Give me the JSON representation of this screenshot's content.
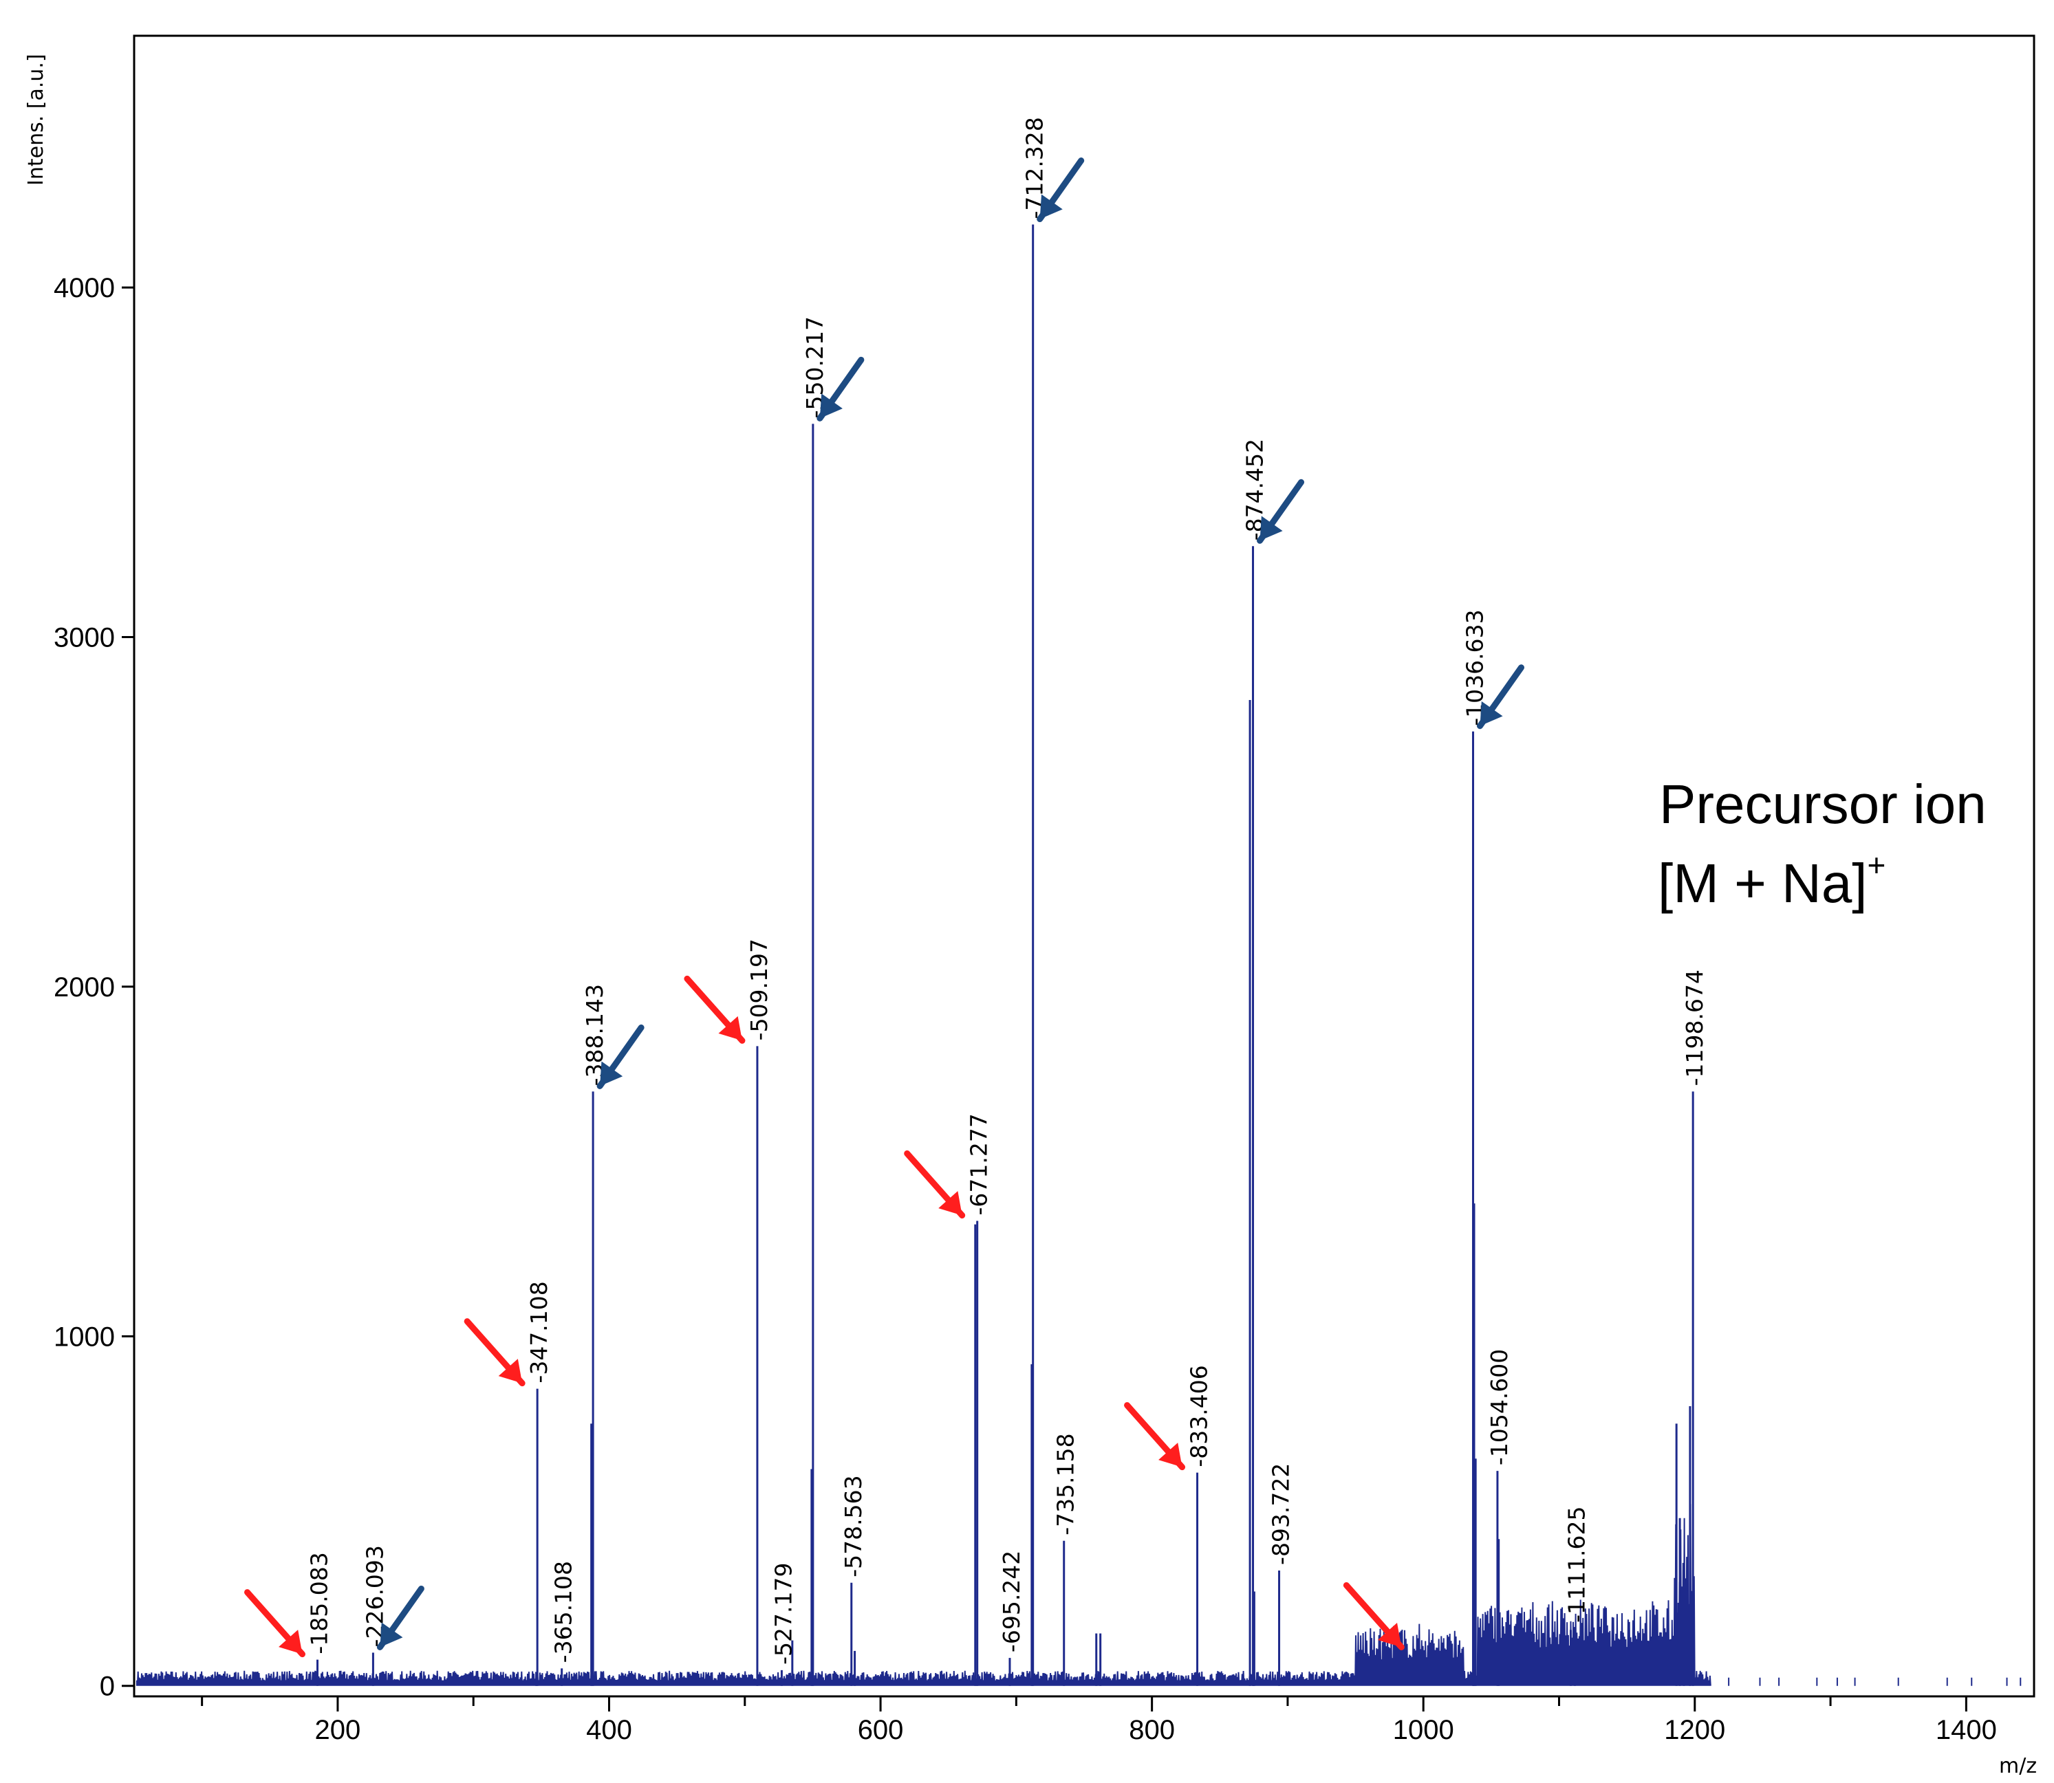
{
  "colors": {
    "spectrum": "#1e2a8c",
    "red_arrow": "#ff1e1e",
    "blue_arrow": "#1d4b82",
    "axis": "#000000"
  },
  "chart_data": {
    "type": "line",
    "title": "",
    "xlabel": "m/z",
    "ylabel": "Intens. [a.u.]",
    "xlim": [
      50,
      1450
    ],
    "ylim": [
      -30,
      4720
    ],
    "x_ticks": [
      200,
      400,
      600,
      800,
      1000,
      1200,
      1400
    ],
    "x_tick_labels": [
      "200",
      "400",
      "600",
      "800",
      "1000",
      "1200",
      "1400"
    ],
    "x_minor_ticks": [
      100,
      300,
      500,
      700,
      900,
      1100,
      1300
    ],
    "y_ticks": [
      0,
      1000,
      2000,
      3000,
      4000
    ],
    "y_tick_labels": [
      "0",
      "1000",
      "2000",
      "3000",
      "4000"
    ],
    "peaks": [
      {
        "mz": 185.083,
        "intensity": 75,
        "label": "185.083"
      },
      {
        "mz": 226.093,
        "intensity": 95,
        "label": "226.093"
      },
      {
        "mz": 347.108,
        "intensity": 850,
        "label": "347.108"
      },
      {
        "mz": 365.108,
        "intensity": 50,
        "label": "365.108"
      },
      {
        "mz": 388.143,
        "intensity": 1700,
        "label": "388.143"
      },
      {
        "mz": 509.197,
        "intensity": 1830,
        "label": "509.197"
      },
      {
        "mz": 527.179,
        "intensity": 45,
        "label": "527.179"
      },
      {
        "mz": 550.217,
        "intensity": 3610,
        "label": "550.217"
      },
      {
        "mz": 578.563,
        "intensity": 295,
        "label": "578.563"
      },
      {
        "mz": 671.277,
        "intensity": 1330,
        "label": "671.277"
      },
      {
        "mz": 695.242,
        "intensity": 80,
        "label": "695.242"
      },
      {
        "mz": 712.328,
        "intensity": 4180,
        "label": "712.328"
      },
      {
        "mz": 735.158,
        "intensity": 415,
        "label": "735.158"
      },
      {
        "mz": 833.406,
        "intensity": 610,
        "label": "833.406"
      },
      {
        "mz": 874.452,
        "intensity": 3260,
        "label": "874.452"
      },
      {
        "mz": 893.722,
        "intensity": 330,
        "label": "893.722"
      },
      {
        "mz": 1036.633,
        "intensity": 2730,
        "label": "1036.633"
      },
      {
        "mz": 1054.6,
        "intensity": 615,
        "label": "1054.600"
      },
      {
        "mz": 1111.625,
        "intensity": 165,
        "label": "1111.625"
      },
      {
        "mz": 1198.674,
        "intensity": 1700,
        "label": "1198.674"
      }
    ],
    "unlabeled_peaks": [
      {
        "mz": 346.3,
        "intensity": 40
      },
      {
        "mz": 386.9,
        "intensity": 750
      },
      {
        "mz": 549.2,
        "intensity": 620
      },
      {
        "mz": 535,
        "intensity": 130
      },
      {
        "mz": 581,
        "intensity": 100
      },
      {
        "mz": 669.8,
        "intensity": 1320
      },
      {
        "mz": 711.4,
        "intensity": 920
      },
      {
        "mz": 759,
        "intensity": 150
      },
      {
        "mz": 762,
        "intensity": 150
      },
      {
        "mz": 872.2,
        "intensity": 2820
      },
      {
        "mz": 875.4,
        "intensity": 270
      },
      {
        "mz": 1037.4,
        "intensity": 1380
      },
      {
        "mz": 1038.5,
        "intensity": 650
      },
      {
        "mz": 1055.5,
        "intensity": 420
      },
      {
        "mz": 1108.6,
        "intensity": 160
      },
      {
        "mz": 1186.5,
        "intensity": 750
      },
      {
        "mz": 1189,
        "intensity": 480
      },
      {
        "mz": 1192,
        "intensity": 300
      },
      {
        "mz": 1196.5,
        "intensity": 800
      }
    ],
    "annotation": {
      "line1": "Precursor ion",
      "line2": "[M + Na]",
      "line2_sup": "+"
    },
    "arrows": [
      {
        "color": "red",
        "target_mz": 185.083
      },
      {
        "color": "blue",
        "target_mz": 226.093
      },
      {
        "color": "red",
        "target_mz": 347.108
      },
      {
        "color": "blue",
        "target_mz": 388.143
      },
      {
        "color": "red",
        "target_mz": 509.197
      },
      {
        "color": "blue",
        "target_mz": 550.217
      },
      {
        "color": "red",
        "target_mz": 671.277
      },
      {
        "color": "blue",
        "target_mz": 712.328
      },
      {
        "color": "red",
        "target_mz": 833.406
      },
      {
        "color": "blue",
        "target_mz": 874.452
      },
      {
        "color": "red",
        "target_mz": 995
      },
      {
        "color": "blue",
        "target_mz": 1036.633
      }
    ]
  }
}
